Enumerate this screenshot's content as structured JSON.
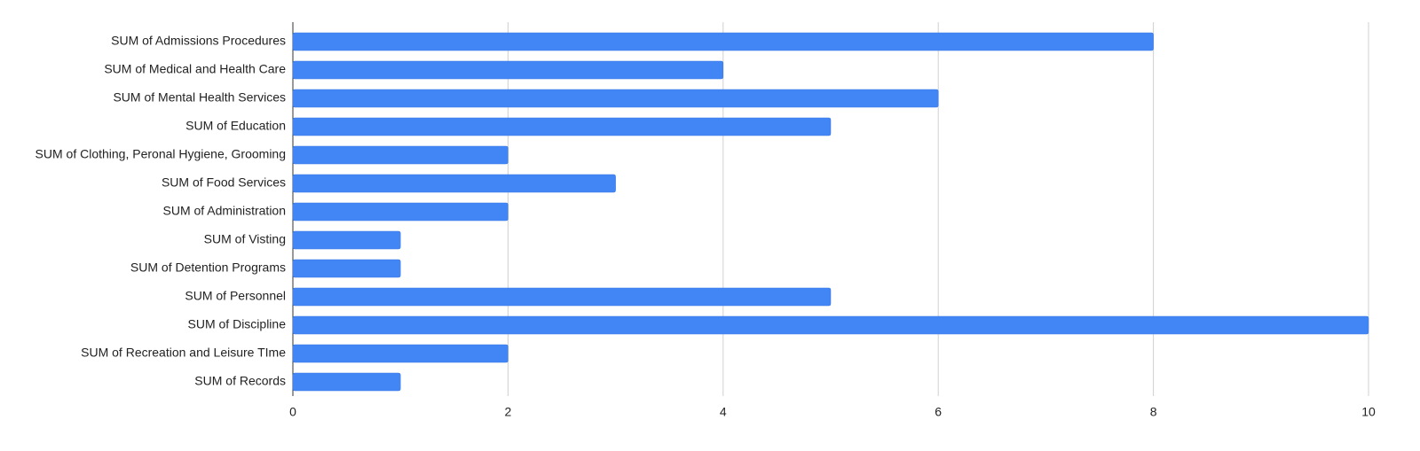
{
  "chart_data": {
    "type": "bar",
    "orientation": "horizontal",
    "categories": [
      "SUM of Admissions Procedures",
      "SUM of Medical and Health Care",
      "SUM of Mental Health Services",
      "SUM of Education",
      "SUM of Clothing, Peronal Hygiene, Grooming",
      "SUM of Food Services",
      "SUM of Administration",
      "SUM of Visting",
      "SUM of Detention Programs",
      "SUM of Personnel",
      "SUM of Discipline",
      "SUM of Recreation and Leisure TIme",
      "SUM of Records"
    ],
    "values": [
      8,
      4,
      6,
      5,
      2,
      3,
      2,
      1,
      1,
      5,
      10,
      2,
      1
    ],
    "color": "#4285f4",
    "xlim": [
      0,
      10
    ],
    "xticks": [
      0,
      2,
      4,
      6,
      8,
      10
    ],
    "grid": true
  }
}
